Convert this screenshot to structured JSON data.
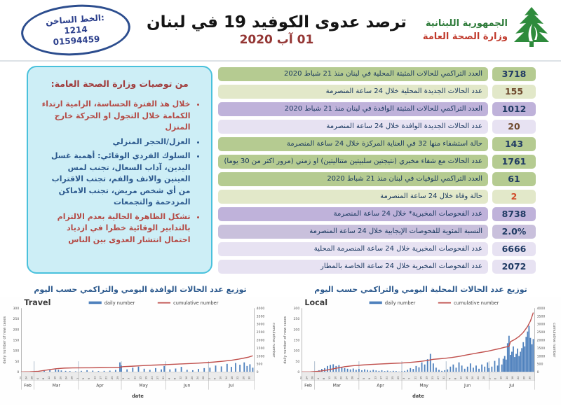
{
  "header": {
    "hotline": {
      "label": "الخط الساخن:",
      "number1": "1214",
      "number2": "01594459"
    },
    "title": "ترصد عدوى الكوفيد 19 في لبنان",
    "date": "01 آب 2020",
    "gov_line1": "الجمهورية اللبنانية",
    "gov_line2": "وزارة الصحة العامة",
    "logo_icon": "cedar-tree",
    "accent_green": "#2e8b3c",
    "accent_red": "#c0392b"
  },
  "recommendations": {
    "title": "من توصيات وزارة الصحة العامة:",
    "bullets": [
      {
        "color": "red",
        "text": "خلال هذ الفترة الحساسة، الزامية ارتداء الكمامة خلال التجول او الحركة خارج المنزل"
      },
      {
        "color": "blue",
        "text": "العزل/الحجر المنزلي"
      },
      {
        "color": "blue",
        "text": "السلوك الفردي الوقائي: أهمية غسل اليدين، آداب السعال، تجنب لمس العينين والانف والفم، تجنب الاقتراب من أي شخص مريض، تجنب الاماكن المزدحمة والتجمعات"
      },
      {
        "color": "red",
        "text": "تشكل الظاهرة الحالية بعدم الالتزام بالتدابير الوقائية خطرا في ازدياد احتمال انتشار العدوى بين الناس"
      }
    ]
  },
  "stats": {
    "rows": [
      {
        "label": "العدد التراكمي للحالات المثبتة المحلية في لبنان منذ 21 شباط 2020",
        "value": "3718",
        "tone": "g1",
        "value_color": "navy"
      },
      {
        "label": "عدد الحالات الجديدة المحلية خلال 24 ساعة المنصرمة",
        "value": "155",
        "tone": "g2",
        "value_color": "brown"
      },
      {
        "label": "العدد التراكمي للحالات المثبتة الوافدة في لبنان منذ 21 شباط 2020",
        "value": "1012",
        "tone": "p1",
        "value_color": "navy"
      },
      {
        "label": "عدد الحالات الجديدة الوافدة خلال 24 ساعة المنصرمة",
        "value": "20",
        "tone": "p2",
        "value_color": "brown"
      },
      {
        "label": "حالة استشفاء منها 32 في العناية المركزة خلال 24 ساعة المنصرمة",
        "value": "143",
        "tone": "g1",
        "value_color": "navy"
      },
      {
        "label": "عدد الحالات مع شفاء مخبري (نتيجتين سلبيتين متتاليتين) او زمني (مرور اكثر من 30 يوما)",
        "value": "1761",
        "tone": "g1",
        "value_color": "navy"
      },
      {
        "label": "العدد التراكمي للوفيات في لبنان منذ 21 شباط 2020",
        "value": "61",
        "tone": "g1",
        "value_color": "navy"
      },
      {
        "label": "حالة وفاة خلال 24 ساعة المنصرمة",
        "value": "2",
        "tone": "g2",
        "value_color": "redval"
      },
      {
        "label": "عدد الفحوصات المخبرية* خلال 24 ساعة المنصرمة",
        "value": "8738",
        "tone": "p1",
        "value_color": "navy"
      },
      {
        "label": "النسبة المئوية للفحوصات الإيجابية خلال 24 ساعة المنصرمة",
        "value": "2.0%",
        "tone": "p3",
        "value_color": "navy"
      },
      {
        "label": "عدد الفحوصات المخبرية خلال 24 ساعة المنصرمة المحلية",
        "value": "6666",
        "tone": "p2",
        "value_color": "navy"
      },
      {
        "label": "عدد الفحوصات المخبرية خلال 24 ساعة الخاصة بالمطار",
        "value": "2072",
        "tone": "p2",
        "value_color": "navy"
      }
    ]
  },
  "section_titles": {
    "travel": "توزيع عدد الحالات الوافدة اليومي والتراكمي حسب اليوم",
    "local": "توزيع عدد الحالات المحلية اليومي والتراكمي حسب اليوم"
  },
  "chart_data": [
    {
      "type": "bar",
      "name": "travel",
      "title": "Travel",
      "legend": [
        "daily number",
        "cumulative number"
      ],
      "xlabel": "date",
      "ylabel_left": "daily number of new cases",
      "ylabel_right": "cumulative number",
      "y_left": {
        "min": 0,
        "max": 300,
        "step": 50
      },
      "y_right": {
        "min": 0,
        "max": 4000,
        "step": 500
      },
      "months": [
        "Feb",
        "Mar",
        "Apr",
        "May",
        "Jun",
        "Jul"
      ],
      "month_boundary_days": [
        0,
        9,
        40,
        70,
        101,
        131,
        163
      ],
      "x_tick_days": [
        0,
        4,
        8,
        12,
        16,
        20,
        24,
        28,
        32,
        36,
        40,
        44,
        48,
        52,
        56,
        60,
        64,
        68,
        72,
        76,
        80,
        84,
        88,
        92,
        96,
        100,
        104,
        108,
        112,
        116,
        120,
        124,
        128,
        132,
        136,
        140,
        144,
        148,
        152,
        156,
        160
      ],
      "x_tick_labels": [
        "20",
        "24",
        "28",
        "4",
        "8",
        "12",
        "16",
        "20",
        "24",
        "28",
        "1",
        "5",
        "9",
        "13",
        "17",
        "21",
        "25",
        "29",
        "3",
        "7",
        "11",
        "15",
        "19",
        "23",
        "27",
        "31",
        "4",
        "8",
        "12",
        "16",
        "20",
        "24",
        "28",
        "2",
        "6",
        "10",
        "14",
        "18",
        "22",
        "26",
        "30"
      ],
      "bar_color": "#4f81bd",
      "line_color": "#c0504d",
      "daily": [
        [
          0,
          1
        ],
        [
          4,
          1
        ],
        [
          8,
          2
        ],
        [
          12,
          4
        ],
        [
          16,
          6
        ],
        [
          20,
          9
        ],
        [
          24,
          12
        ],
        [
          26,
          10
        ],
        [
          28,
          7
        ],
        [
          31,
          5
        ],
        [
          34,
          4
        ],
        [
          38,
          3
        ],
        [
          42,
          5
        ],
        [
          46,
          8
        ],
        [
          50,
          6
        ],
        [
          54,
          4
        ],
        [
          58,
          5
        ],
        [
          62,
          6
        ],
        [
          66,
          9
        ],
        [
          69,
          45
        ],
        [
          70,
          30
        ],
        [
          74,
          12
        ],
        [
          78,
          20
        ],
        [
          82,
          25
        ],
        [
          86,
          15
        ],
        [
          90,
          10
        ],
        [
          94,
          18
        ],
        [
          98,
          12
        ],
        [
          100,
          28
        ],
        [
          104,
          12
        ],
        [
          108,
          16
        ],
        [
          112,
          24
        ],
        [
          116,
          10
        ],
        [
          120,
          8
        ],
        [
          124,
          14
        ],
        [
          128,
          18
        ],
        [
          132,
          20
        ],
        [
          136,
          30
        ],
        [
          140,
          26
        ],
        [
          144,
          38
        ],
        [
          147,
          24
        ],
        [
          150,
          42
        ],
        [
          153,
          34
        ],
        [
          156,
          45
        ],
        [
          158,
          28
        ],
        [
          160,
          36
        ],
        [
          162,
          20
        ]
      ],
      "cumulative": [
        [
          0,
          2
        ],
        [
          6,
          8
        ],
        [
          12,
          40
        ],
        [
          18,
          120
        ],
        [
          24,
          200
        ],
        [
          30,
          240
        ],
        [
          36,
          252
        ],
        [
          45,
          258
        ],
        [
          55,
          268
        ],
        [
          63,
          275
        ],
        [
          69,
          285
        ],
        [
          71,
          330
        ],
        [
          78,
          360
        ],
        [
          85,
          395
        ],
        [
          92,
          425
        ],
        [
          99,
          450
        ],
        [
          106,
          478
        ],
        [
          113,
          505
        ],
        [
          120,
          535
        ],
        [
          127,
          570
        ],
        [
          134,
          615
        ],
        [
          141,
          670
        ],
        [
          147,
          730
        ],
        [
          152,
          800
        ],
        [
          156,
          870
        ],
        [
          159,
          930
        ],
        [
          162,
          1012
        ]
      ]
    },
    {
      "type": "bar",
      "name": "local",
      "title": "Local",
      "legend": [
        "daily number",
        "cumulative number"
      ],
      "xlabel": "date",
      "ylabel_left": "daily number of new cases",
      "ylabel_right": "cumulative number",
      "y_left": {
        "min": 0,
        "max": 300,
        "step": 50
      },
      "y_right": {
        "min": 0,
        "max": 4000,
        "step": 500
      },
      "months": [
        "Feb",
        "Mar",
        "Apr",
        "May",
        "Jun",
        "Jul"
      ],
      "month_boundary_days": [
        0,
        9,
        40,
        70,
        101,
        131,
        163
      ],
      "x_tick_days": [
        0,
        4,
        8,
        12,
        16,
        20,
        24,
        28,
        32,
        36,
        40,
        44,
        48,
        52,
        56,
        60,
        64,
        68,
        72,
        76,
        80,
        84,
        88,
        92,
        96,
        100,
        104,
        108,
        112,
        116,
        120,
        124,
        128,
        132,
        136,
        140,
        144,
        148,
        152,
        156,
        160
      ],
      "x_tick_labels": [
        "20",
        "24",
        "28",
        "4",
        "8",
        "12",
        "16",
        "20",
        "24",
        "28",
        "1",
        "5",
        "9",
        "13",
        "17",
        "21",
        "25",
        "29",
        "3",
        "7",
        "11",
        "15",
        "19",
        "23",
        "27",
        "31",
        "4",
        "8",
        "12",
        "16",
        "20",
        "24",
        "28",
        "2",
        "6",
        "10",
        "14",
        "18",
        "22",
        "26",
        "30"
      ],
      "bar_color": "#4f81bd",
      "line_color": "#c0504d",
      "daily": [
        [
          0,
          1
        ],
        [
          4,
          1
        ],
        [
          8,
          3
        ],
        [
          12,
          8
        ],
        [
          14,
          14
        ],
        [
          16,
          18
        ],
        [
          18,
          28
        ],
        [
          20,
          33
        ],
        [
          22,
          36
        ],
        [
          24,
          28
        ],
        [
          26,
          32
        ],
        [
          28,
          22
        ],
        [
          30,
          18
        ],
        [
          32,
          15
        ],
        [
          34,
          12
        ],
        [
          36,
          16
        ],
        [
          38,
          10
        ],
        [
          40,
          14
        ],
        [
          42,
          8
        ],
        [
          44,
          12
        ],
        [
          46,
          9
        ],
        [
          48,
          6
        ],
        [
          50,
          10
        ],
        [
          52,
          7
        ],
        [
          54,
          5
        ],
        [
          56,
          8
        ],
        [
          58,
          4
        ],
        [
          60,
          6
        ],
        [
          62,
          3
        ],
        [
          64,
          5
        ],
        [
          66,
          4
        ],
        [
          68,
          2
        ],
        [
          70,
          3
        ],
        [
          72,
          5
        ],
        [
          74,
          10
        ],
        [
          76,
          18
        ],
        [
          78,
          14
        ],
        [
          80,
          28
        ],
        [
          82,
          22
        ],
        [
          84,
          45
        ],
        [
          86,
          35
        ],
        [
          88,
          60
        ],
        [
          90,
          85
        ],
        [
          92,
          40
        ],
        [
          94,
          20
        ],
        [
          96,
          10
        ],
        [
          98,
          5
        ],
        [
          100,
          8
        ],
        [
          102,
          12
        ],
        [
          104,
          25
        ],
        [
          106,
          35
        ],
        [
          108,
          20
        ],
        [
          110,
          45
        ],
        [
          112,
          30
        ],
        [
          114,
          15
        ],
        [
          116,
          25
        ],
        [
          118,
          40
        ],
        [
          120,
          20
        ],
        [
          122,
          30
        ],
        [
          124,
          15
        ],
        [
          126,
          35
        ],
        [
          128,
          25
        ],
        [
          130,
          45
        ],
        [
          131,
          18
        ],
        [
          133,
          25
        ],
        [
          135,
          52
        ],
        [
          137,
          30
        ],
        [
          138,
          65
        ],
        [
          140,
          35
        ],
        [
          141,
          62
        ],
        [
          142,
          75
        ],
        [
          143,
          58
        ],
        [
          144,
          135
        ],
        [
          145,
          170
        ],
        [
          146,
          80
        ],
        [
          147,
          95
        ],
        [
          148,
          120
        ],
        [
          149,
          70
        ],
        [
          150,
          85
        ],
        [
          151,
          110
        ],
        [
          152,
          75
        ],
        [
          153,
          95
        ],
        [
          154,
          112
        ],
        [
          155,
          140
        ],
        [
          156,
          120
        ],
        [
          157,
          165
        ],
        [
          158,
          190
        ],
        [
          159,
          217
        ],
        [
          160,
          160
        ],
        [
          161,
          130
        ],
        [
          162,
          155
        ]
      ],
      "cumulative": [
        [
          0,
          1
        ],
        [
          6,
          6
        ],
        [
          12,
          40
        ],
        [
          18,
          120
        ],
        [
          24,
          230
        ],
        [
          30,
          330
        ],
        [
          36,
          390
        ],
        [
          42,
          430
        ],
        [
          48,
          465
        ],
        [
          54,
          495
        ],
        [
          60,
          520
        ],
        [
          66,
          545
        ],
        [
          70,
          560
        ],
        [
          76,
          600
        ],
        [
          82,
          650
        ],
        [
          88,
          720
        ],
        [
          92,
          790
        ],
        [
          96,
          820
        ],
        [
          100,
          855
        ],
        [
          105,
          905
        ],
        [
          110,
          975
        ],
        [
          115,
          1060
        ],
        [
          120,
          1140
        ],
        [
          125,
          1220
        ],
        [
          130,
          1300
        ],
        [
          134,
          1380
        ],
        [
          138,
          1460
        ],
        [
          142,
          1545
        ],
        [
          144,
          1580
        ],
        [
          145,
          1610
        ],
        [
          146,
          1900
        ],
        [
          149,
          2030
        ],
        [
          152,
          2220
        ],
        [
          155,
          2480
        ],
        [
          158,
          2850
        ],
        [
          160,
          3200
        ],
        [
          162,
          3718
        ]
      ]
    }
  ]
}
